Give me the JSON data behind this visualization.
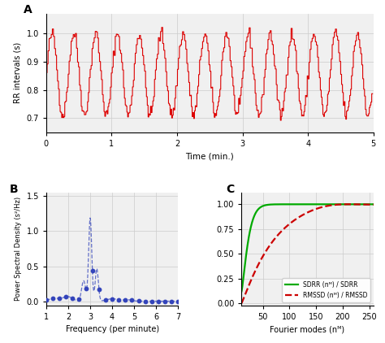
{
  "panel_A": {
    "title": "A",
    "ylabel": "RR intervals (s)",
    "xlabel": "Time (min.)",
    "xlim": [
      0,
      5
    ],
    "ylim": [
      0.65,
      1.07
    ],
    "yticks": [
      0.7,
      0.8,
      0.9,
      1.0
    ],
    "xticks": [
      0,
      1,
      2,
      3,
      4,
      5
    ],
    "color": "#dd0000",
    "linewidth": 0.8
  },
  "panel_B": {
    "title": "B",
    "ylabel": "Power Spectral Density (s²/Hz)",
    "xlabel": "Frequency (per minute)",
    "xlim": [
      1,
      7
    ],
    "ylim": [
      -0.05,
      1.55
    ],
    "yticks": [
      0.0,
      0.5,
      1.0,
      1.5
    ],
    "xticks": [
      1,
      2,
      3,
      4,
      5,
      6,
      7
    ],
    "color": "#3344bb",
    "linewidth": 0.9
  },
  "panel_C": {
    "title": "C",
    "xlabel": "Fourier modes (nᴹ)",
    "xlim": [
      10,
      258
    ],
    "ylim": [
      -0.02,
      1.12
    ],
    "yticks": [
      0.0,
      0.25,
      0.5,
      0.75,
      1.0
    ],
    "xticks": [
      50,
      100,
      150,
      200,
      250
    ],
    "sdrr_color": "#00aa00",
    "rmssd_color": "#cc0000",
    "legend_sdrr": "SDRR (nᴹ) / SDRR",
    "legend_rmssd": "RMSSD (nᴹ) / RMSSD"
  },
  "bg_color": "#f0f0f0",
  "grid_color": "#cccccc"
}
